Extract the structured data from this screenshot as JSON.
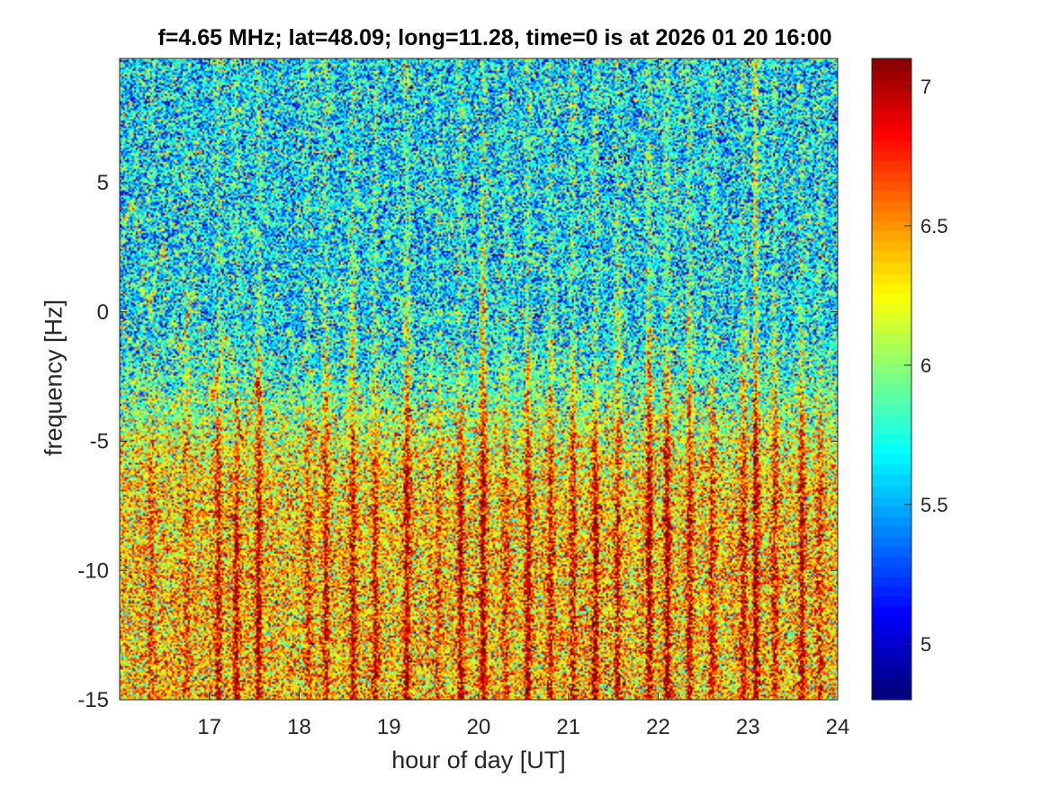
{
  "chart_data": {
    "type": "heatmap",
    "title": "f=4.65 MHz;  lat=48.09; long=11.28, time=0 is at 2026 01 20 16:00",
    "xlabel": "hour of day [UT]",
    "ylabel": "frequency [Hz]",
    "xlim": [
      16.0,
      24.0
    ],
    "ylim": [
      -15,
      9.8
    ],
    "xticks": [
      17,
      18,
      19,
      20,
      21,
      22,
      23,
      24
    ],
    "yticks": [
      -15,
      -10,
      -5,
      0,
      5
    ],
    "colorbar": {
      "colormap": "jet",
      "clim": [
        4.8,
        7.1
      ],
      "ticks": [
        5,
        5.5,
        6,
        6.5,
        7
      ]
    },
    "features": {
      "background_level_upper_band": 5.6,
      "background_level_lower_band": 6.6,
      "enhanced_band_frequency_range": [
        -15,
        -4
      ],
      "vertical_streak_hours": [
        16.35,
        16.75,
        17.1,
        17.3,
        17.55,
        18.1,
        18.3,
        18.6,
        18.85,
        19.2,
        19.55,
        19.8,
        20.05,
        20.3,
        20.55,
        20.8,
        21.05,
        21.3,
        21.55,
        21.9,
        22.1,
        22.35,
        22.6,
        22.95,
        23.1,
        23.3,
        23.6,
        23.8
      ],
      "bright_line_hour": 23.08,
      "trace_frequency_range": [
        -9,
        3.6
      ],
      "trace_hour_range": [
        16.0,
        17.6
      ]
    }
  }
}
